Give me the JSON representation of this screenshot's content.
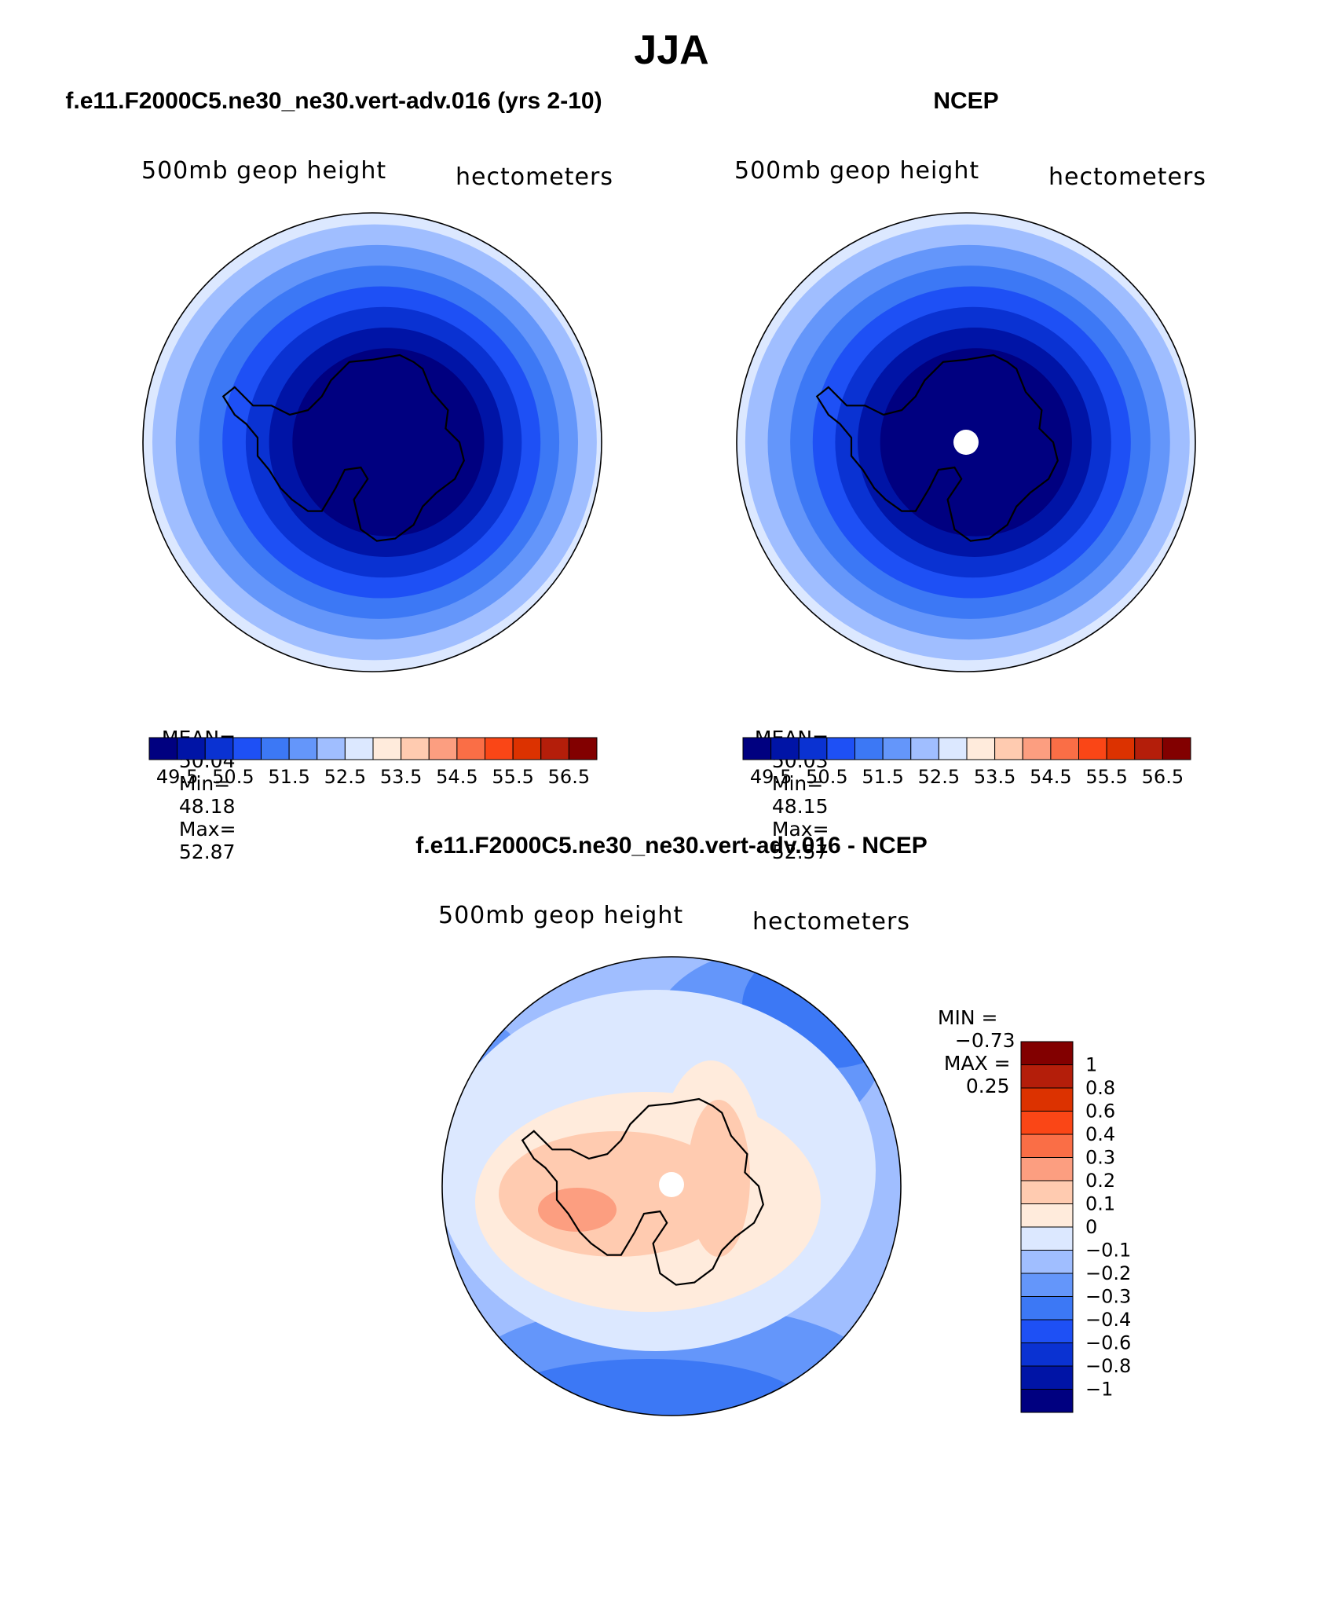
{
  "page_title": "JJA",
  "colors": {
    "scale": [
      "#000080",
      "#0014a6",
      "#0a32d2",
      "#1e50f5",
      "#3c78f5",
      "#6496fa",
      "#a0beff",
      "#dce8ff",
      "#ffebdc",
      "#ffcbb0",
      "#fc9e80",
      "#fa6e46",
      "#fa4616",
      "#dc3200",
      "#b41e0a",
      "#820000"
    ],
    "coast": "#000000"
  },
  "chart_data": [
    {
      "type": "heatmap",
      "id": "model",
      "title": "f.e11.F2000C5.ne30_ne30.vert-adv.016 (yrs 2-10)",
      "left_label": "500mb geop height",
      "right_label": "hectometers",
      "stats": {
        "mean_label": "MEAN=",
        "mean": "50.04",
        "min_label": "Min=",
        "min": "48.18",
        "max_label": "Max=",
        "max": "52.87"
      },
      "colorbar_ticks": [
        "49.5",
        "50.5",
        "51.5",
        "52.5",
        "53.5",
        "54.5",
        "55.5",
        "56.5"
      ],
      "levels": [
        49,
        49.5,
        50,
        50.5,
        51,
        51.5,
        52,
        52.5,
        53,
        53.5,
        54,
        54.5,
        55,
        55.5,
        56,
        56.5
      ]
    },
    {
      "type": "heatmap",
      "id": "obs",
      "title": "NCEP",
      "left_label": "500mb geop height",
      "right_label": "hectometers",
      "stats": {
        "mean_label": "MEAN=",
        "mean": "50.03",
        "min_label": "Min=",
        "min": "48.15",
        "max_label": "Max=",
        "max": "52.57"
      },
      "colorbar_ticks": [
        "49.5",
        "50.5",
        "51.5",
        "52.5",
        "53.5",
        "54.5",
        "55.5",
        "56.5"
      ],
      "levels": [
        49,
        49.5,
        50,
        50.5,
        51,
        51.5,
        52,
        52.5,
        53,
        53.5,
        54,
        54.5,
        55,
        55.5,
        56,
        56.5
      ]
    },
    {
      "type": "heatmap",
      "id": "diff",
      "title": "f.e11.F2000C5.ne30_ne30.vert-adv.016 - NCEP",
      "left_label": "500mb geop height",
      "right_label": "hectometers",
      "minmax": {
        "min_label": "MIN =",
        "min": "−0.73",
        "max_label": "MAX =",
        "max": "0.25"
      },
      "colorbar_labels": [
        "1",
        "0.8",
        "0.6",
        "0.4",
        "0.3",
        "0.2",
        "0.1",
        "0",
        "−0.1",
        "−0.2",
        "−0.3",
        "−0.4",
        "−0.6",
        "−0.8",
        "−1"
      ],
      "levels": [
        -1,
        -0.8,
        -0.6,
        -0.4,
        -0.3,
        -0.2,
        -0.1,
        0,
        0.1,
        0.2,
        0.3,
        0.4,
        0.6,
        0.8,
        1
      ]
    }
  ]
}
